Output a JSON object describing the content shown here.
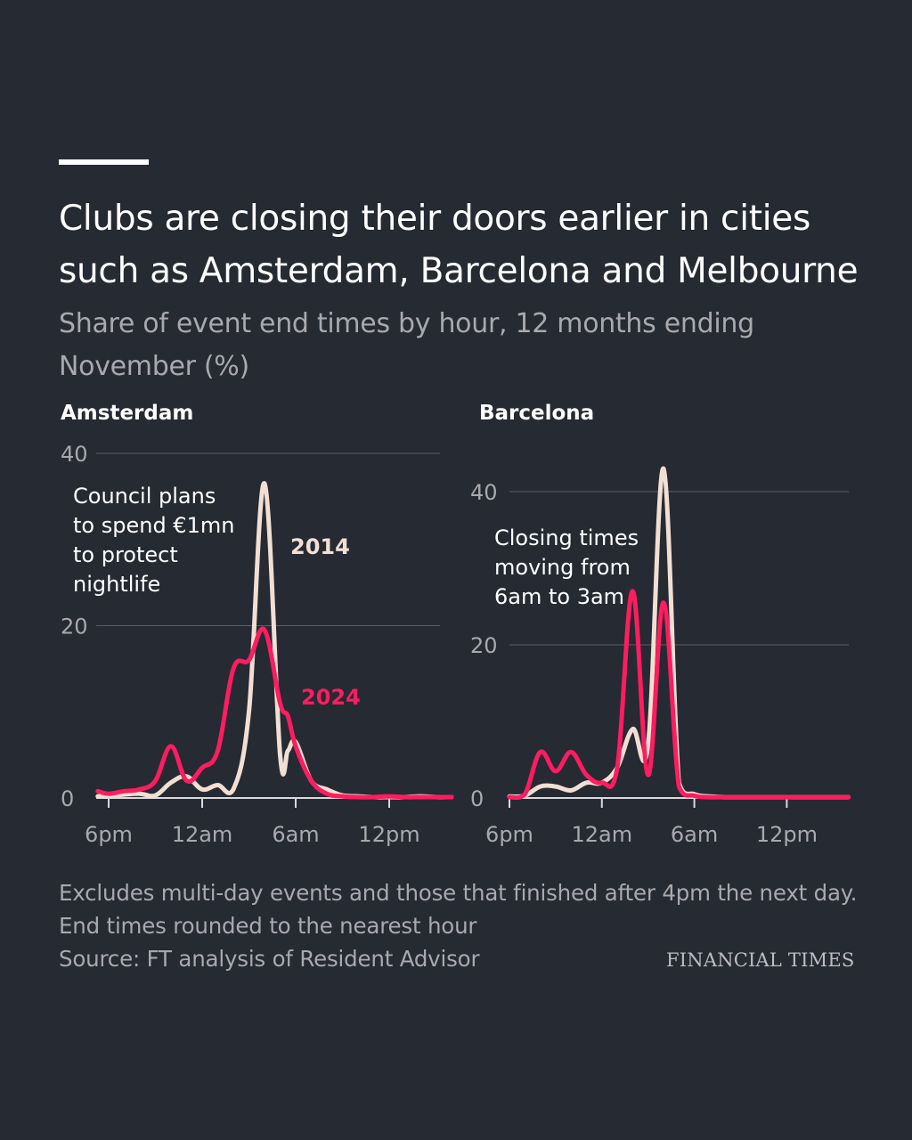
{
  "title": "Clubs are closing their doors earlier in cities such as Amsterdam, Barcelona and Melbourne",
  "subtitle": "Share of event end times by hour, 12 months ending November (%)",
  "footnote": "Excludes multi-day events and those that finished after 4pm the next day. End times rounded to the nearest hour",
  "source": "Source: FT analysis of Resident Advisor",
  "publisher": "FINANCIAL TIMES",
  "colors": {
    "background": "#262a33",
    "series_2014": "#f2dfd3",
    "series_2024": "#ff1c5f",
    "grid": "#5a5d66",
    "muted_text": "#a9a9ad"
  },
  "chart_data": [
    {
      "type": "line",
      "title": "Amsterdam",
      "ylim": [
        0,
        40
      ],
      "yticks": [
        0,
        20,
        40
      ],
      "xlim": [
        -0.5,
        22
      ],
      "xticks": [
        0,
        6,
        12,
        18
      ],
      "xtick_labels": [
        "6pm",
        "12am",
        "6am",
        "12pm"
      ],
      "grid": true,
      "series": [
        {
          "name": "2014",
          "x": [
            -0.7,
            0,
            1,
            2,
            3,
            4,
            5,
            6,
            7,
            8,
            9,
            10,
            11,
            11.5,
            12,
            13,
            14,
            15,
            16,
            17,
            18,
            19,
            20,
            21,
            22
          ],
          "values": [
            0.2,
            0.3,
            0.4,
            0.5,
            0.3,
            1.8,
            2.5,
            1,
            1.5,
            1,
            10,
            36.5,
            5,
            5.5,
            6.5,
            2,
            1,
            0.3,
            0.2,
            0.1,
            0.1,
            0.1,
            0.2,
            0.1,
            0.1
          ]
        },
        {
          "name": "2024",
          "x": [
            -0.7,
            0,
            1,
            2,
            3,
            4,
            5,
            6,
            7,
            8,
            9,
            10,
            11,
            11.5,
            12,
            13,
            14,
            15,
            16,
            17,
            18,
            19,
            20,
            21,
            22
          ],
          "values": [
            0.8,
            0.5,
            0.8,
            1,
            2,
            6,
            2,
            3.5,
            5.5,
            15,
            16,
            19.5,
            11,
            9.5,
            6,
            2,
            0.5,
            0.2,
            0.1,
            0.1,
            0.2,
            0.1,
            0.1,
            0.1,
            0.1
          ]
        }
      ],
      "annotations": [
        {
          "text_lines": [
            "Council plans",
            "to spend €1mn",
            "to protect",
            "nightlife"
          ]
        },
        {
          "text": "2014",
          "series": "2014"
        },
        {
          "text": "2024",
          "series": "2024"
        }
      ]
    },
    {
      "type": "line",
      "title": "Barcelona",
      "ylim": [
        0,
        40
      ],
      "yticks": [
        0,
        20,
        40
      ],
      "xlim": [
        0,
        22
      ],
      "xticks": [
        0,
        6,
        12,
        18
      ],
      "xtick_labels": [
        "6pm",
        "12am",
        "6am",
        "12pm"
      ],
      "grid": true,
      "series": [
        {
          "name": "2014",
          "x": [
            0,
            1,
            2,
            3,
            4,
            5,
            6,
            7,
            8,
            9,
            10,
            11,
            12,
            13,
            14,
            15,
            16,
            17,
            18,
            19,
            20,
            21,
            22
          ],
          "values": [
            0.2,
            0.3,
            1.5,
            1.5,
            1,
            2,
            2,
            4,
            9,
            7,
            43,
            2,
            0.5,
            0.2,
            0.1,
            0.1,
            0.1,
            0.1,
            0.1,
            0.1,
            0.1,
            0.1,
            0.1
          ]
        },
        {
          "name": "2024",
          "x": [
            0,
            1,
            2,
            3,
            4,
            5,
            6,
            7,
            8,
            9,
            10,
            11,
            12,
            13,
            14,
            15,
            16,
            17,
            18,
            19,
            20,
            21,
            22
          ],
          "values": [
            0.1,
            0.5,
            6,
            3.5,
            6,
            3,
            2,
            4,
            27,
            3,
            25.5,
            1.5,
            0.3,
            0.1,
            0.1,
            0.1,
            0.1,
            0.1,
            0.1,
            0.1,
            0.1,
            0.1,
            0.1
          ]
        }
      ],
      "annotations": [
        {
          "text_lines": [
            "Closing times",
            "moving from",
            "6am to 3am"
          ]
        }
      ]
    }
  ]
}
